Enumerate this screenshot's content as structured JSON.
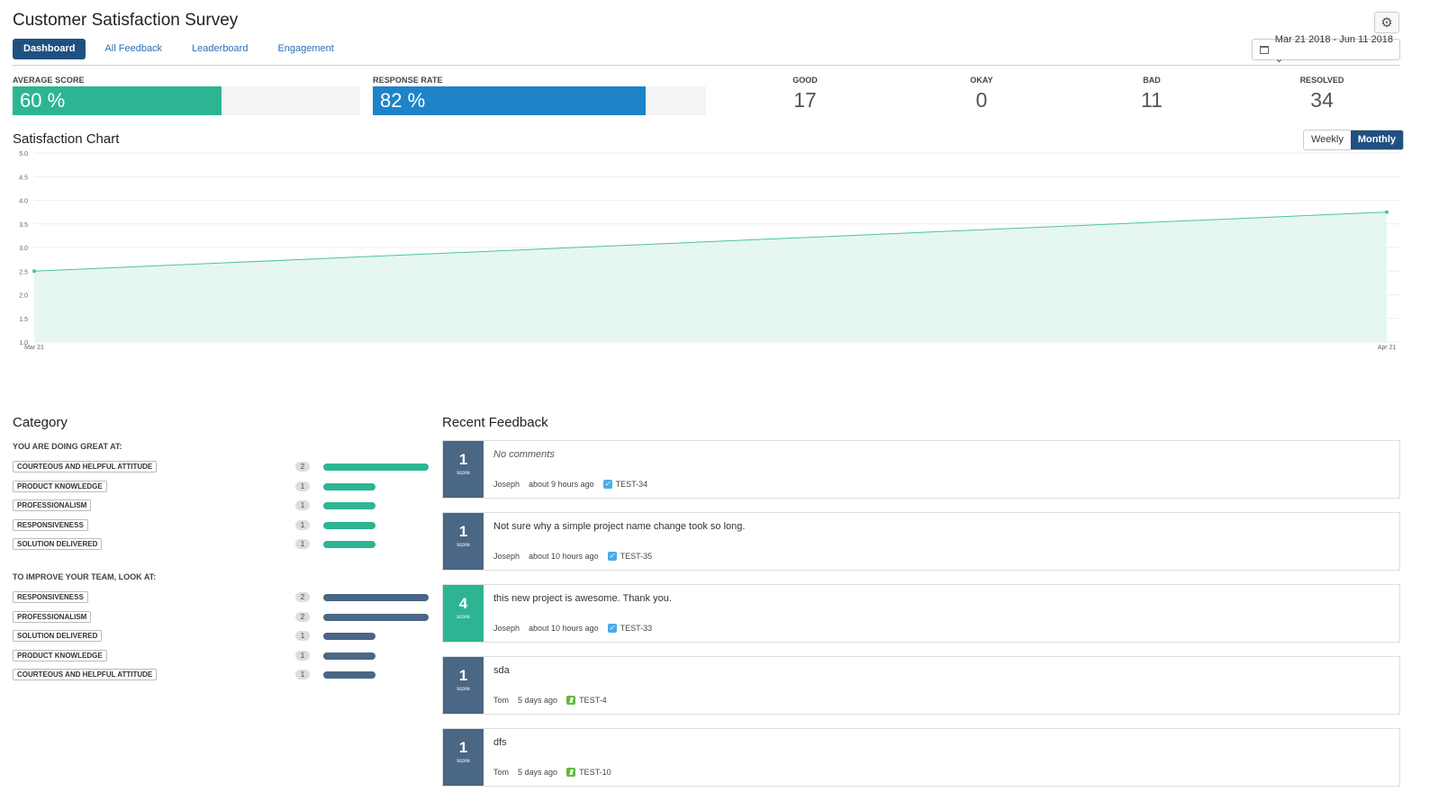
{
  "header": {
    "title": "Customer Satisfaction Survey",
    "settings_icon": "gear-icon",
    "date_range": "Mar 21 2018 - Jun 11 2018 ⌄",
    "tabs": [
      {
        "label": "Dashboard",
        "active": true
      },
      {
        "label": "All Feedback",
        "active": false
      },
      {
        "label": "Leaderboard",
        "active": false
      },
      {
        "label": "Engagement",
        "active": false
      }
    ]
  },
  "kpis": {
    "average_score": {
      "label": "AVERAGE SCORE",
      "value": "60 %",
      "fraction": 0.6,
      "color": "#2db593"
    },
    "response_rate": {
      "label": "RESPONSE RATE",
      "value": "82 %",
      "fraction": 0.82,
      "color": "#1f83c9"
    },
    "stats": [
      {
        "label": "GOOD",
        "value": "17"
      },
      {
        "label": "OKAY",
        "value": "0"
      },
      {
        "label": "BAD",
        "value": "11"
      },
      {
        "label": "RESOLVED",
        "value": "34"
      }
    ]
  },
  "chart": {
    "title": "Satisfaction Chart",
    "toggle": [
      {
        "label": "Weekly",
        "active": false
      },
      {
        "label": "Monthly",
        "active": true
      }
    ]
  },
  "chart_data": {
    "type": "area",
    "x": [
      "Mar 21",
      "Apr 21"
    ],
    "values": [
      2.5,
      3.75
    ],
    "ylim": [
      1.0,
      5.0
    ],
    "yticks": [
      "1.0",
      "1.5",
      "2.0",
      "2.5",
      "3.0",
      "3.5",
      "4.0",
      "4.5",
      "5.0"
    ],
    "grid": true,
    "color": "#4cc3a5"
  },
  "category": {
    "title": "Category",
    "great_heading": "YOU ARE DOING GREAT AT:",
    "great_color": "#2db593",
    "great": [
      {
        "label": "COURTEOUS AND HELPFUL ATTITUDE",
        "count": 2
      },
      {
        "label": "PRODUCT KNOWLEDGE",
        "count": 1
      },
      {
        "label": "PROFESSIONALISM",
        "count": 1
      },
      {
        "label": "RESPONSIVENESS",
        "count": 1
      },
      {
        "label": "SOLUTION DELIVERED",
        "count": 1
      }
    ],
    "improve_heading": "TO IMPROVE YOUR TEAM, LOOK AT:",
    "improve_color": "#4a6785",
    "improve": [
      {
        "label": "RESPONSIVENESS",
        "count": 2
      },
      {
        "label": "PROFESSIONALISM",
        "count": 2
      },
      {
        "label": "SOLUTION DELIVERED",
        "count": 1
      },
      {
        "label": "PRODUCT KNOWLEDGE",
        "count": 1
      },
      {
        "label": "COURTEOUS AND HELPFUL ATTITUDE",
        "count": 1
      }
    ]
  },
  "feedback": {
    "title": "Recent Feedback",
    "score_caption": "score",
    "items": [
      {
        "score": "1",
        "comment": "No comments",
        "italic": true,
        "user": "Joseph",
        "time": "about 9 hours ago",
        "issue": "TEST-34",
        "issue_type": "task",
        "score_color": "#4a6785"
      },
      {
        "score": "1",
        "comment": "Not sure why a simple project name change took so long.",
        "italic": false,
        "user": "Joseph",
        "time": "about 10 hours ago",
        "issue": "TEST-35",
        "issue_type": "task",
        "score_color": "#4a6785"
      },
      {
        "score": "4",
        "comment": "this new project is awesome. Thank you.",
        "italic": false,
        "user": "Joseph",
        "time": "about 10 hours ago",
        "issue": "TEST-33",
        "issue_type": "task",
        "score_color": "#2db593"
      },
      {
        "score": "1",
        "comment": "sda",
        "italic": false,
        "user": "Tom",
        "time": "5 days ago",
        "issue": "TEST-4",
        "issue_type": "story",
        "score_color": "#4a6785"
      },
      {
        "score": "1",
        "comment": "dfs",
        "italic": false,
        "user": "Tom",
        "time": "5 days ago",
        "issue": "TEST-10",
        "issue_type": "story",
        "score_color": "#4a6785"
      }
    ]
  }
}
